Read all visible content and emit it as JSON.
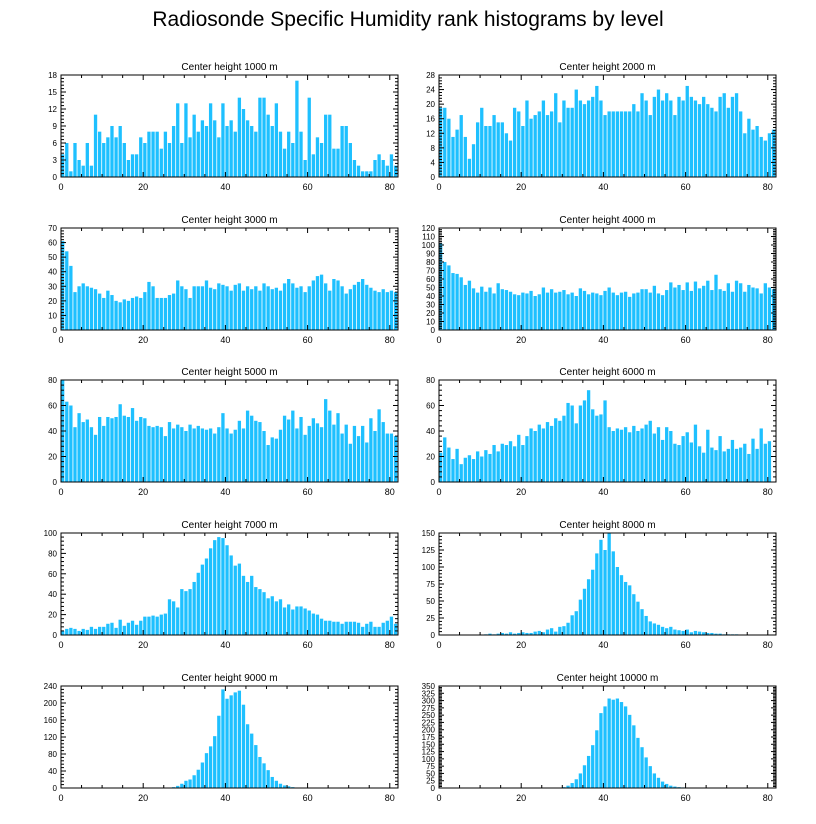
{
  "chart_data": {
    "title": "Radiosonde Specific Humidity rank histograms by level",
    "bar_color": "#1ec0ff",
    "panels": [
      {
        "title": "Center height 1000 m",
        "type": "bar",
        "x_ticks": [
          0,
          20,
          40,
          60,
          80
        ],
        "xlim": [
          0,
          82
        ],
        "ylim": [
          0,
          18
        ],
        "y_ticks": [
          0,
          3,
          6,
          9,
          12,
          15,
          18
        ],
        "values": [
          4,
          6,
          1,
          6,
          3,
          2,
          6,
          2,
          11,
          8,
          6,
          7,
          9,
          7,
          9,
          6,
          3,
          4,
          4,
          7,
          6,
          8,
          8,
          8,
          5,
          8,
          6,
          9,
          13,
          6,
          13,
          7,
          11,
          8,
          10,
          9,
          13,
          10,
          7,
          13,
          9,
          10,
          8,
          14,
          12,
          10,
          9,
          8,
          14,
          14,
          11,
          9,
          13,
          8,
          5,
          8,
          6,
          17,
          8,
          3,
          14,
          4,
          7,
          6,
          11,
          11,
          5,
          5,
          9,
          9,
          6,
          3,
          2,
          1,
          1,
          1,
          3,
          4,
          3,
          2,
          4,
          2,
          2
        ]
      },
      {
        "title": "Center height 2000 m",
        "type": "bar",
        "x_ticks": [
          0,
          20,
          40,
          60,
          80
        ],
        "xlim": [
          0,
          82
        ],
        "ylim": [
          0,
          28
        ],
        "y_ticks": [
          0,
          4,
          8,
          12,
          16,
          20,
          24,
          28
        ],
        "values": [
          19,
          19,
          16,
          11,
          13,
          17,
          11,
          5,
          9,
          15,
          19,
          14,
          14,
          17,
          15,
          15,
          12,
          10,
          19,
          18,
          14,
          21,
          16,
          17,
          18,
          21,
          17,
          18,
          23,
          15,
          21,
          19,
          19,
          24,
          21,
          20,
          21,
          22,
          25,
          21,
          17,
          18,
          18,
          18,
          18,
          18,
          18,
          20,
          18,
          23,
          21,
          17,
          22,
          24,
          21,
          23,
          21,
          17,
          22,
          21,
          25,
          22,
          21,
          20,
          22,
          20,
          19,
          18,
          22,
          23,
          19,
          22,
          23,
          18,
          12,
          16,
          13,
          14,
          11,
          10,
          12,
          13,
          7,
          5,
          16,
          4,
          6
        ]
      },
      {
        "title": "Center height 3000 m",
        "type": "bar",
        "x_ticks": [
          0,
          20,
          40,
          60,
          80
        ],
        "xlim": [
          0,
          82
        ],
        "ylim": [
          0,
          70
        ],
        "y_ticks": [
          0,
          10,
          20,
          30,
          40,
          50,
          60,
          70
        ],
        "values": [
          61,
          54,
          44,
          26,
          30,
          32,
          30,
          29,
          28,
          25,
          22,
          27,
          24,
          20,
          19,
          21,
          20,
          22,
          23,
          22,
          26,
          33,
          30,
          22,
          22,
          22,
          24,
          25,
          34,
          30,
          28,
          22,
          30,
          30,
          30,
          34,
          29,
          28,
          32,
          31,
          30,
          27,
          31,
          32,
          27,
          30,
          28,
          30,
          27,
          32,
          30,
          28,
          29,
          27,
          32,
          35,
          32,
          29,
          30,
          26,
          30,
          34,
          37,
          38,
          32,
          27,
          35,
          34,
          30,
          25,
          28,
          31,
          33,
          35,
          31,
          29,
          27,
          26,
          28,
          26,
          27,
          26,
          40
        ]
      },
      {
        "title": "Center height 4000 m",
        "type": "bar",
        "x_ticks": [
          0,
          20,
          40,
          60,
          80
        ],
        "xlim": [
          0,
          82
        ],
        "ylim": [
          0,
          120
        ],
        "y_ticks": [
          0,
          10,
          20,
          30,
          40,
          50,
          60,
          70,
          80,
          90,
          100,
          110,
          120
        ],
        "values": [
          102,
          80,
          76,
          67,
          66,
          62,
          53,
          58,
          49,
          44,
          51,
          45,
          50,
          43,
          55,
          48,
          47,
          45,
          42,
          41,
          44,
          43,
          46,
          40,
          42,
          50,
          44,
          48,
          44,
          45,
          47,
          42,
          44,
          40,
          49,
          46,
          42,
          44,
          43,
          41,
          46,
          50,
          44,
          41,
          44,
          45,
          39,
          43,
          44,
          48,
          48,
          44,
          52,
          43,
          41,
          47,
          56,
          50,
          53,
          47,
          56,
          46,
          57,
          49,
          52,
          58,
          47,
          65,
          48,
          46,
          55,
          45,
          58,
          55,
          45,
          53,
          50,
          49,
          43,
          55,
          50,
          48,
          45
        ]
      },
      {
        "title": "Center height 5000 m",
        "type": "bar",
        "x_ticks": [
          0,
          20,
          40,
          60,
          80
        ],
        "xlim": [
          0,
          82
        ],
        "ylim": [
          0,
          80
        ],
        "y_ticks": [
          0,
          20,
          40,
          60,
          80
        ],
        "values": [
          80,
          63,
          60,
          43,
          54,
          47,
          49,
          43,
          37,
          51,
          44,
          51,
          50,
          51,
          61,
          52,
          51,
          58,
          48,
          51,
          50,
          44,
          43,
          44,
          43,
          36,
          47,
          42,
          45,
          43,
          40,
          45,
          42,
          44,
          42,
          41,
          42,
          38,
          43,
          54,
          42,
          38,
          41,
          48,
          42,
          56,
          52,
          48,
          47,
          40,
          29,
          35,
          34,
          41,
          52,
          49,
          56,
          42,
          51,
          37,
          44,
          50,
          46,
          43,
          65,
          56,
          45,
          54,
          38,
          45,
          30,
          44,
          36,
          44,
          31,
          50,
          40,
          57,
          47,
          38,
          38,
          36,
          25,
          37
        ]
      },
      {
        "title": "Center height 6000 m",
        "type": "bar",
        "x_ticks": [
          0,
          20,
          40,
          60,
          80
        ],
        "xlim": [
          0,
          82
        ],
        "ylim": [
          0,
          80
        ],
        "y_ticks": [
          0,
          20,
          40,
          60,
          80
        ],
        "values": [
          23,
          35,
          27,
          18,
          26,
          14,
          19,
          21,
          18,
          24,
          20,
          25,
          22,
          29,
          24,
          30,
          29,
          32,
          28,
          37,
          29,
          36,
          42,
          40,
          45,
          42,
          47,
          44,
          50,
          48,
          52,
          62,
          60,
          46,
          60,
          64,
          72,
          57,
          52,
          53,
          64,
          43,
          40,
          42,
          41,
          43,
          39,
          44,
          40,
          42,
          45,
          48,
          38,
          43,
          33,
          43,
          40,
          30,
          29,
          36,
          39,
          31,
          45,
          28,
          23,
          41,
          27,
          25,
          36,
          24,
          26,
          33,
          26,
          27,
          30,
          22,
          34,
          26,
          42,
          30,
          32
        ]
      },
      {
        "title": "Center height 7000 m",
        "type": "bar",
        "x_ticks": [
          0,
          20,
          40,
          60,
          80
        ],
        "xlim": [
          0,
          82
        ],
        "ylim": [
          0,
          100
        ],
        "y_ticks": [
          0,
          20,
          40,
          60,
          80,
          100
        ],
        "values": [
          4,
          6,
          7,
          6,
          4,
          6,
          5,
          8,
          6,
          8,
          8,
          11,
          12,
          7,
          15,
          9,
          12,
          14,
          10,
          14,
          18,
          18,
          19,
          18,
          20,
          21,
          35,
          33,
          27,
          45,
          43,
          45,
          52,
          61,
          69,
          75,
          85,
          93,
          96,
          95,
          88,
          78,
          68,
          70,
          58,
          52,
          58,
          47,
          45,
          42,
          36,
          38,
          33,
          35,
          27,
          30,
          25,
          28,
          28,
          26,
          24,
          21,
          20,
          16,
          14,
          14,
          13,
          13,
          11,
          13,
          13,
          13,
          12,
          8,
          11,
          13,
          8,
          8,
          12,
          14,
          18,
          11,
          7
        ]
      },
      {
        "title": "Center height 8000 m",
        "type": "bar",
        "x_ticks": [
          0,
          20,
          40,
          60,
          80
        ],
        "xlim": [
          0,
          82
        ],
        "ylim": [
          0,
          150
        ],
        "y_ticks": [
          0,
          25,
          50,
          75,
          100,
          125,
          150
        ],
        "values": [
          0,
          0,
          0,
          0,
          0,
          0,
          0,
          0,
          0,
          0,
          0,
          1,
          2,
          1,
          2,
          3,
          2,
          4,
          2,
          3,
          4,
          3,
          3,
          5,
          6,
          4,
          8,
          10,
          5,
          12,
          13,
          18,
          29,
          35,
          52,
          68,
          82,
          96,
          120,
          140,
          125,
          150,
          123,
          100,
          88,
          78,
          73,
          60,
          49,
          38,
          28,
          20,
          17,
          15,
          12,
          10,
          12,
          8,
          7,
          6,
          8,
          4,
          6,
          5,
          4,
          3,
          3,
          2,
          2,
          1,
          1,
          1,
          1,
          0,
          0,
          0,
          0,
          0,
          0,
          0,
          0,
          0
        ]
      },
      {
        "title": "Center height 9000 m",
        "type": "bar",
        "x_ticks": [
          0,
          20,
          40,
          60,
          80
        ],
        "xlim": [
          0,
          82
        ],
        "ylim": [
          0,
          240
        ],
        "y_ticks": [
          0,
          40,
          80,
          120,
          160,
          200,
          240
        ],
        "values": [
          0,
          0,
          0,
          0,
          0,
          0,
          0,
          0,
          0,
          0,
          0,
          0,
          0,
          0,
          0,
          0,
          0,
          0,
          0,
          0,
          0,
          0,
          0,
          0,
          0,
          0,
          1,
          2,
          5,
          10,
          17,
          20,
          30,
          43,
          60,
          82,
          98,
          122,
          170,
          232,
          210,
          218,
          225,
          229,
          196,
          150,
          128,
          101,
          73,
          58,
          42,
          26,
          17,
          10,
          6,
          4,
          2,
          1,
          1,
          0,
          0,
          0,
          0,
          0,
          0,
          0,
          0,
          0,
          0,
          0,
          0,
          0,
          0,
          0,
          0,
          0,
          0,
          0,
          0,
          0,
          0,
          0
        ]
      },
      {
        "title": "Center height 10000 m",
        "type": "bar",
        "x_ticks": [
          0,
          20,
          40,
          60,
          80
        ],
        "xlim": [
          0,
          82
        ],
        "ylim": [
          0,
          350
        ],
        "y_ticks": [
          0,
          25,
          50,
          75,
          100,
          125,
          150,
          175,
          200,
          225,
          250,
          275,
          300,
          325,
          350
        ],
        "values": [
          0,
          0,
          0,
          0,
          0,
          0,
          0,
          0,
          0,
          0,
          0,
          0,
          0,
          0,
          0,
          0,
          0,
          0,
          0,
          0,
          0,
          0,
          0,
          0,
          0,
          0,
          0,
          0,
          0,
          1,
          3,
          8,
          17,
          30,
          50,
          78,
          110,
          147,
          198,
          257,
          280,
          307,
          303,
          307,
          295,
          280,
          251,
          215,
          172,
          140,
          105,
          75,
          50,
          35,
          22,
          14,
          8,
          5,
          3,
          2,
          1,
          1,
          0,
          0,
          0,
          0,
          0,
          0,
          0,
          0,
          0,
          0,
          0,
          0,
          0,
          0,
          0,
          0,
          0,
          0,
          0
        ]
      }
    ]
  }
}
